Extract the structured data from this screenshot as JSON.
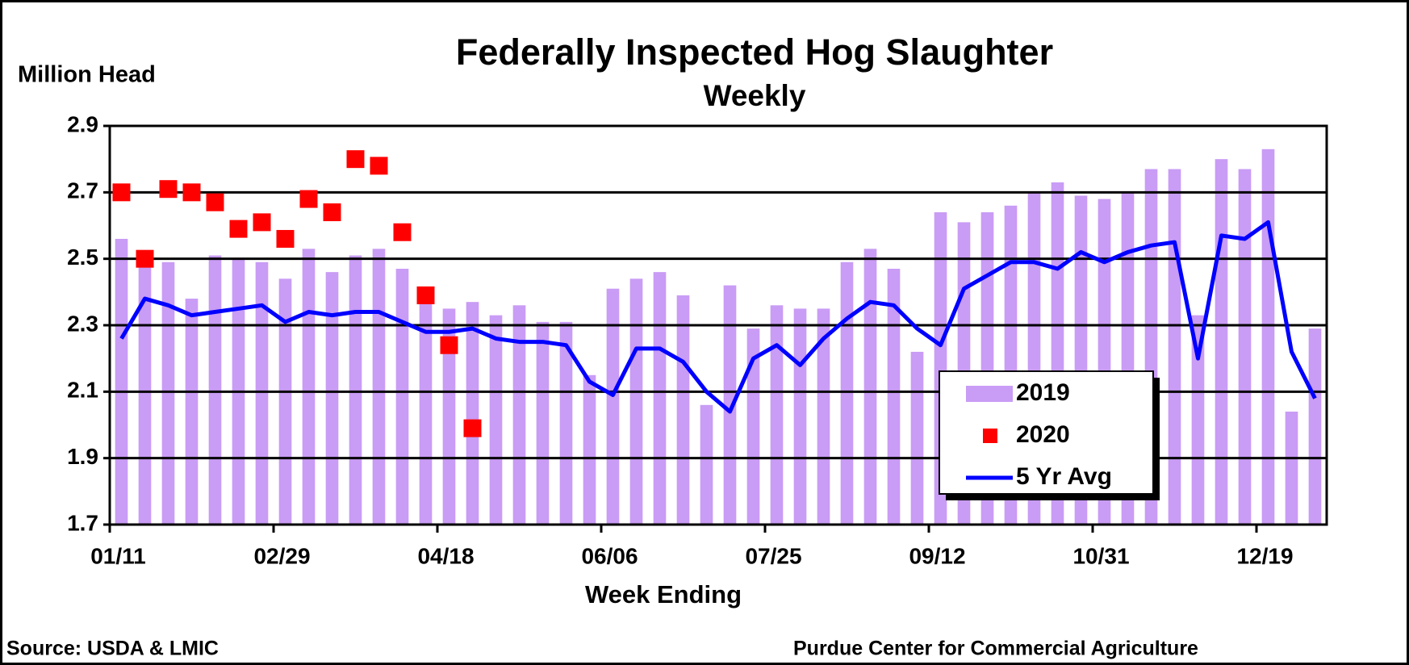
{
  "chart_data": {
    "type": "combo",
    "title": "Federally Inspected Hog Slaughter",
    "subtitle": "Weekly",
    "y_label": "Million Head",
    "x_label": "Week Ending",
    "source": "Source:  USDA & LMIC",
    "credit": "Purdue Center for Commercial Agriculture",
    "categories": [
      "01/11",
      null,
      null,
      null,
      null,
      null,
      null,
      "02/29",
      null,
      null,
      null,
      null,
      null,
      null,
      "04/18",
      null,
      null,
      null,
      null,
      null,
      null,
      "06/06",
      null,
      null,
      null,
      null,
      null,
      null,
      "07/25",
      null,
      null,
      null,
      null,
      null,
      null,
      "09/12",
      null,
      null,
      null,
      null,
      null,
      null,
      "10/31",
      null,
      null,
      null,
      null,
      null,
      null,
      "12/19",
      null,
      null
    ],
    "ylim": [
      1.7,
      2.9
    ],
    "yticks": [
      1.7,
      1.9,
      2.1,
      2.3,
      2.5,
      2.7,
      2.9
    ],
    "grid": true,
    "legend": "lower right",
    "series": [
      {
        "name": "2019",
        "type": "bar",
        "color": "#c99cf5",
        "values": [
          2.56,
          2.49,
          2.49,
          2.38,
          2.51,
          2.5,
          2.49,
          2.44,
          2.53,
          2.46,
          2.51,
          2.53,
          2.47,
          2.39,
          2.35,
          2.37,
          2.33,
          2.36,
          2.31,
          2.31,
          2.15,
          2.41,
          2.44,
          2.46,
          2.39,
          2.06,
          2.42,
          2.29,
          2.36,
          2.35,
          2.35,
          2.49,
          2.53,
          2.47,
          2.22,
          2.64,
          2.61,
          2.64,
          2.66,
          2.7,
          2.73,
          2.69,
          2.68,
          2.7,
          2.77,
          2.77,
          2.33,
          2.8,
          2.77,
          2.83,
          2.04,
          2.29
        ]
      },
      {
        "name": "2020",
        "type": "scatter",
        "color": "#ff0000",
        "values": [
          2.7,
          2.5,
          2.71,
          2.7,
          2.67,
          2.59,
          2.61,
          2.56,
          2.68,
          2.64,
          2.8,
          2.78,
          2.58,
          2.39,
          2.24,
          1.99,
          null,
          null,
          null,
          null,
          null,
          null,
          null,
          null,
          null,
          null,
          null,
          null,
          null,
          null,
          null,
          null,
          null,
          null,
          null,
          null,
          null,
          null,
          null,
          null,
          null,
          null,
          null,
          null,
          null,
          null,
          null,
          null,
          null,
          null,
          null,
          null
        ]
      },
      {
        "name": "5 Yr Avg",
        "type": "line",
        "color": "#0000ff",
        "values": [
          2.26,
          2.38,
          2.36,
          2.33,
          2.34,
          2.35,
          2.36,
          2.31,
          2.34,
          2.33,
          2.34,
          2.34,
          2.31,
          2.28,
          2.28,
          2.29,
          2.26,
          2.25,
          2.25,
          2.24,
          2.13,
          2.09,
          2.23,
          2.23,
          2.19,
          2.1,
          2.04,
          2.2,
          2.24,
          2.18,
          2.26,
          2.32,
          2.37,
          2.36,
          2.29,
          2.24,
          2.41,
          2.45,
          2.49,
          2.49,
          2.47,
          2.52,
          2.49,
          2.52,
          2.54,
          2.55,
          2.2,
          2.57,
          2.56,
          2.61,
          2.22,
          2.08
        ]
      }
    ]
  }
}
